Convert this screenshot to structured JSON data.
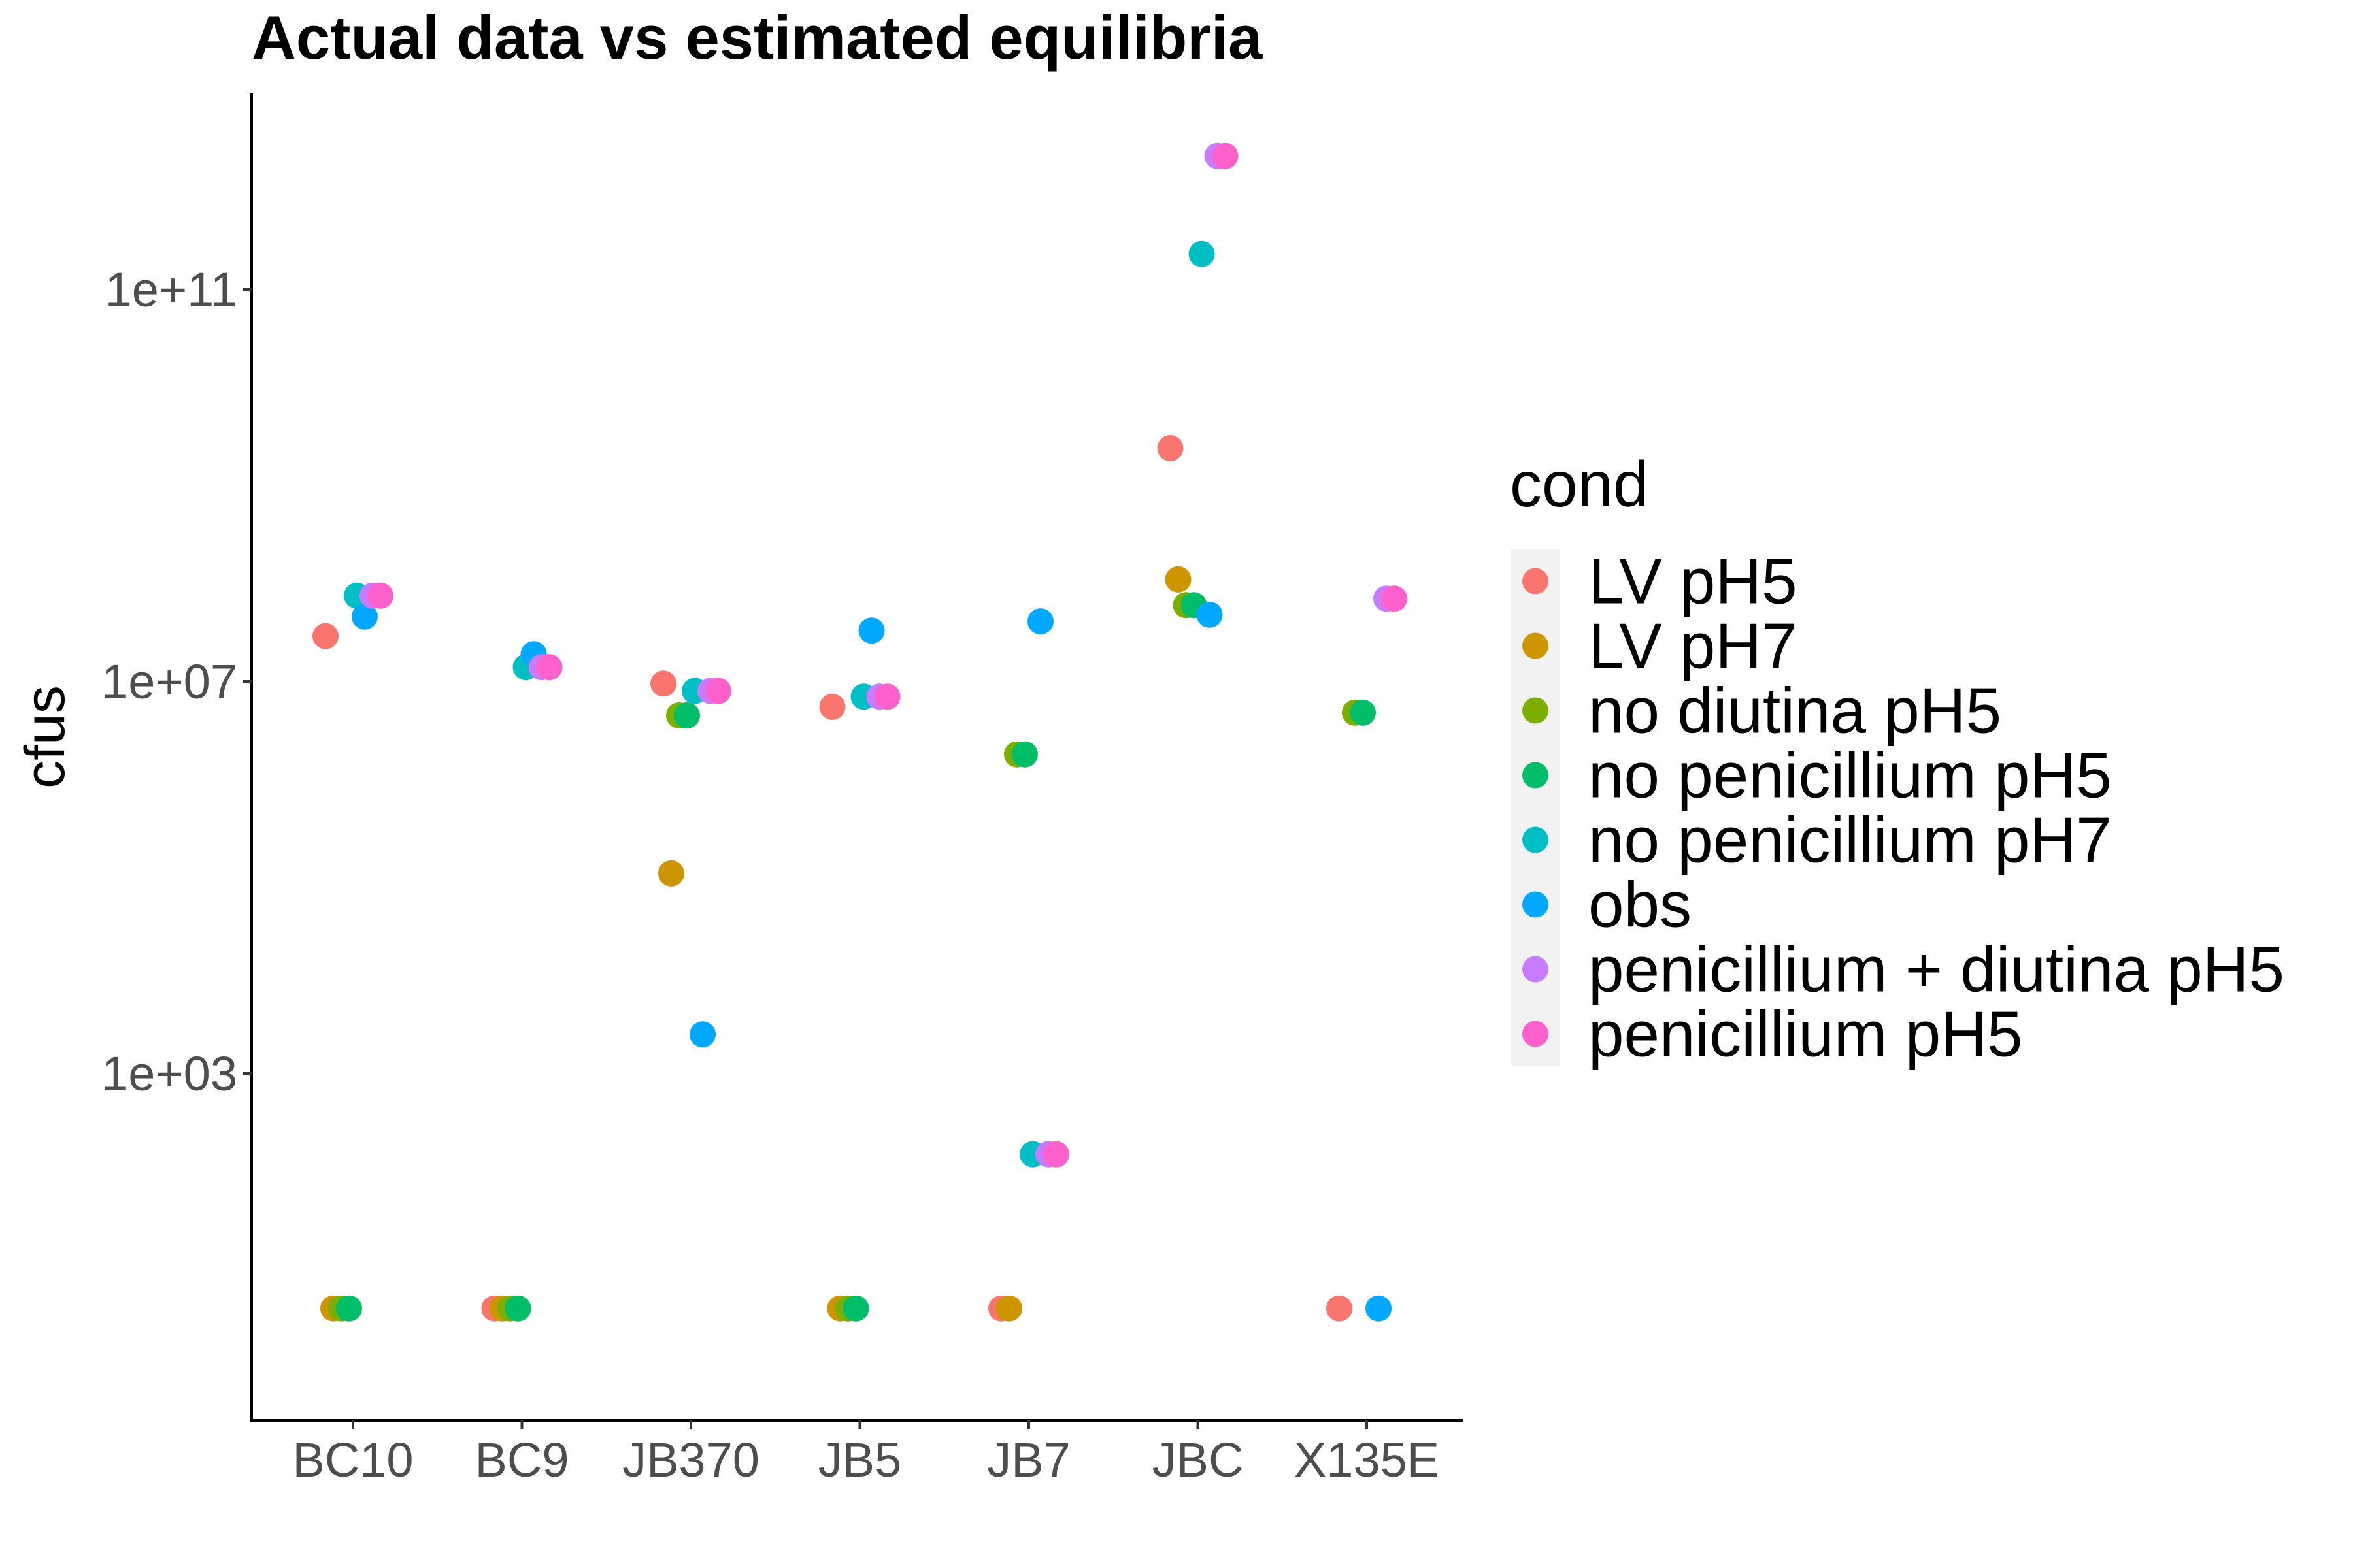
{
  "chart_data": {
    "type": "scatter",
    "title": "Actual data vs estimated equilibria",
    "xlabel": "",
    "ylabel": "cfus",
    "y_scale": "log10",
    "ylim": [
      0.5,
      3000000000000
    ],
    "y_ticks": [
      {
        "value": 1000,
        "label": "1e+03"
      },
      {
        "value": 10000000,
        "label": "1e+07"
      },
      {
        "value": 100000000000,
        "label": "1e+11"
      }
    ],
    "categories": [
      "BC10",
      "BC9",
      "JB370",
      "JB5",
      "JB7",
      "JBC",
      "X135E"
    ],
    "grid": false,
    "legend": {
      "title": "cond",
      "position": "right"
    },
    "series": [
      {
        "name": "LV pH5",
        "color": "#F8766D",
        "points": [
          {
            "x": "BC10",
            "y": 29000000
          },
          {
            "x": "BC9",
            "y": 4
          },
          {
            "x": "JB370",
            "y": 9500000
          },
          {
            "x": "JB5",
            "y": 5500000
          },
          {
            "x": "JB7",
            "y": 4
          },
          {
            "x": "JBC",
            "y": 2400000000
          },
          {
            "x": "X135E",
            "y": 4
          }
        ]
      },
      {
        "name": "LV pH7",
        "color": "#CD9600",
        "points": [
          {
            "x": "BC10",
            "y": 4
          },
          {
            "x": "BC9",
            "y": 4
          },
          {
            "x": "JB370",
            "y": 110000
          },
          {
            "x": "JB5",
            "y": 4
          },
          {
            "x": "JB7",
            "y": 4
          },
          {
            "x": "JBC",
            "y": 110000000
          }
        ]
      },
      {
        "name": "no diutina pH5",
        "color": "#7CAE00",
        "points": [
          {
            "x": "BC10",
            "y": 4
          },
          {
            "x": "BC9",
            "y": 4
          },
          {
            "x": "JB370",
            "y": 4500000
          },
          {
            "x": "JB5",
            "y": 4
          },
          {
            "x": "JB7",
            "y": 1800000
          },
          {
            "x": "JBC",
            "y": 60000000
          },
          {
            "x": "X135E",
            "y": 4800000
          }
        ]
      },
      {
        "name": "no penicillium pH5",
        "color": "#00BE67",
        "points": [
          {
            "x": "BC10",
            "y": 4
          },
          {
            "x": "BC9",
            "y": 4
          },
          {
            "x": "JB370",
            "y": 4500000
          },
          {
            "x": "JB5",
            "y": 4
          },
          {
            "x": "JB7",
            "y": 1800000
          },
          {
            "x": "JBC",
            "y": 60000000
          },
          {
            "x": "X135E",
            "y": 4800000
          }
        ]
      },
      {
        "name": "no penicillium pH7",
        "color": "#00BFC4",
        "points": [
          {
            "x": "BC10",
            "y": 75000000
          },
          {
            "x": "BC9",
            "y": 14000000
          },
          {
            "x": "JB370",
            "y": 8000000
          },
          {
            "x": "JB5",
            "y": 7000000
          },
          {
            "x": "JB7",
            "y": 150
          },
          {
            "x": "JBC",
            "y": 230000000000
          }
        ]
      },
      {
        "name": "obs",
        "color": "#00A9FF",
        "points": [
          {
            "x": "BC10",
            "y": 46000000
          },
          {
            "x": "BC9",
            "y": 19000000
          },
          {
            "x": "JB370",
            "y": 2500
          },
          {
            "x": "JB5",
            "y": 33000000
          },
          {
            "x": "JB7",
            "y": 41000000
          },
          {
            "x": "JBC",
            "y": 48000000
          },
          {
            "x": "X135E",
            "y": 4
          }
        ]
      },
      {
        "name": "penicillium + diutina pH5",
        "color": "#C77CFF",
        "points": [
          {
            "x": "BC10",
            "y": 75000000
          },
          {
            "x": "BC9",
            "y": 14000000
          },
          {
            "x": "JB370",
            "y": 8000000
          },
          {
            "x": "JB5",
            "y": 7000000
          },
          {
            "x": "JB7",
            "y": 150
          },
          {
            "x": "JBC",
            "y": 2300000000000
          },
          {
            "x": "X135E",
            "y": 70000000
          }
        ]
      },
      {
        "name": "penicillium pH5",
        "color": "#FF61CC",
        "points": [
          {
            "x": "BC10",
            "y": 75000000
          },
          {
            "x": "BC9",
            "y": 14000000
          },
          {
            "x": "JB370",
            "y": 8000000
          },
          {
            "x": "JB5",
            "y": 7000000
          },
          {
            "x": "JB7",
            "y": 150
          },
          {
            "x": "JBC",
            "y": 2300000000000
          },
          {
            "x": "X135E",
            "y": 70000000
          }
        ]
      }
    ]
  }
}
